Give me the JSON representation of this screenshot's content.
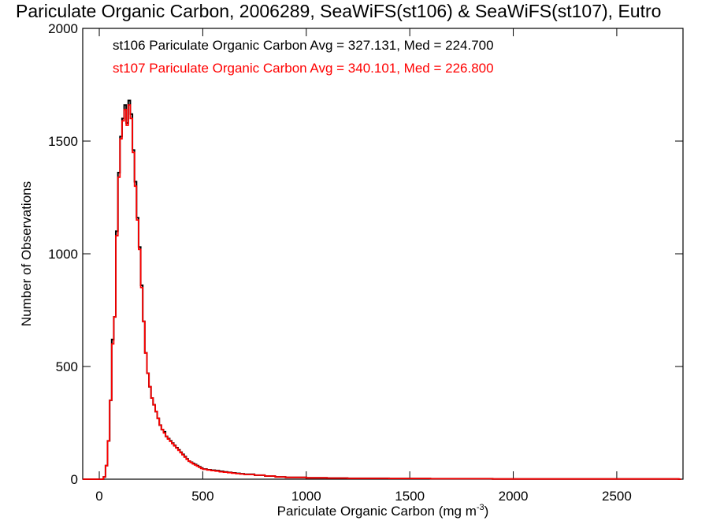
{
  "chart_data": {
    "type": "histogram-step",
    "title": "Pariculate Organic Carbon, 2006289, SeaWiFS(st106) & SeaWiFS(st107), Eutro",
    "xlabel": "Pariculate Organic Carbon (mg m",
    "xlabel_sup": "-3",
    "xlabel_close": ")",
    "ylabel": "Number of Observations",
    "xlim": [
      -80,
      2820
    ],
    "ylim": [
      0,
      2000
    ],
    "xticks": [
      0,
      500,
      1000,
      1500,
      2000,
      2500
    ],
    "yticks": [
      0,
      500,
      1000,
      1500,
      2000
    ],
    "xtick_labels": [
      "0",
      "500",
      "1000",
      "1500",
      "2000",
      "2500"
    ],
    "ytick_labels": [
      "0",
      "500",
      "1000",
      "1500",
      "2000"
    ],
    "bin_width": 10,
    "x": [
      -80,
      -70,
      -60,
      -50,
      -40,
      -30,
      -20,
      -10,
      0,
      10,
      20,
      30,
      40,
      50,
      60,
      70,
      80,
      90,
      100,
      110,
      120,
      130,
      140,
      150,
      160,
      170,
      180,
      190,
      200,
      210,
      220,
      230,
      240,
      250,
      260,
      270,
      280,
      290,
      300,
      310,
      320,
      330,
      340,
      350,
      360,
      370,
      380,
      390,
      400,
      410,
      420,
      430,
      440,
      450,
      460,
      470,
      480,
      490,
      500,
      520,
      540,
      560,
      580,
      600,
      620,
      640,
      660,
      680,
      700,
      750,
      800,
      850,
      900,
      1000,
      1100,
      1200,
      1300,
      1400,
      1500,
      1600,
      1700,
      1800,
      1900,
      2000,
      2200,
      2400,
      2600,
      2800
    ],
    "series": [
      {
        "name": "st106 Pariculate Organic Carbon Avg = 327.131, Med = 224.700",
        "color": "#000000",
        "values": [
          0,
          0,
          0,
          0,
          0,
          0,
          0,
          0,
          0,
          0,
          10,
          60,
          170,
          350,
          620,
          720,
          1100,
          1360,
          1520,
          1600,
          1660,
          1580,
          1680,
          1620,
          1460,
          1320,
          1160,
          1030,
          860,
          700,
          560,
          470,
          410,
          360,
          330,
          300,
          270,
          240,
          220,
          210,
          190,
          180,
          170,
          160,
          150,
          140,
          130,
          120,
          110,
          100,
          90,
          80,
          75,
          70,
          65,
          60,
          55,
          50,
          45,
          42,
          40,
          38,
          35,
          32,
          30,
          28,
          26,
          24,
          22,
          18,
          14,
          10,
          8,
          6,
          5,
          4,
          4,
          3,
          3,
          2,
          2,
          2,
          1,
          1,
          1,
          1,
          1,
          0
        ]
      },
      {
        "name": "st107 Pariculate Organic Carbon Avg = 340.101, Med = 226.800",
        "color": "#ff0000",
        "values": [
          0,
          0,
          0,
          0,
          0,
          0,
          0,
          0,
          0,
          0,
          10,
          60,
          170,
          350,
          600,
          720,
          1080,
          1340,
          1510,
          1590,
          1640,
          1570,
          1660,
          1600,
          1450,
          1300,
          1150,
          1020,
          850,
          700,
          560,
          470,
          410,
          360,
          330,
          300,
          270,
          240,
          220,
          205,
          190,
          178,
          168,
          158,
          148,
          138,
          128,
          118,
          108,
          98,
          88,
          80,
          74,
          68,
          63,
          58,
          53,
          48,
          44,
          41,
          38,
          36,
          33,
          31,
          29,
          27,
          25,
          23,
          21,
          18,
          14,
          10,
          8,
          6,
          5,
          4,
          4,
          3,
          3,
          2,
          2,
          2,
          1,
          1,
          1,
          1,
          1,
          0
        ]
      }
    ],
    "legend_placement": "top-left inside plot",
    "grid": false
  }
}
